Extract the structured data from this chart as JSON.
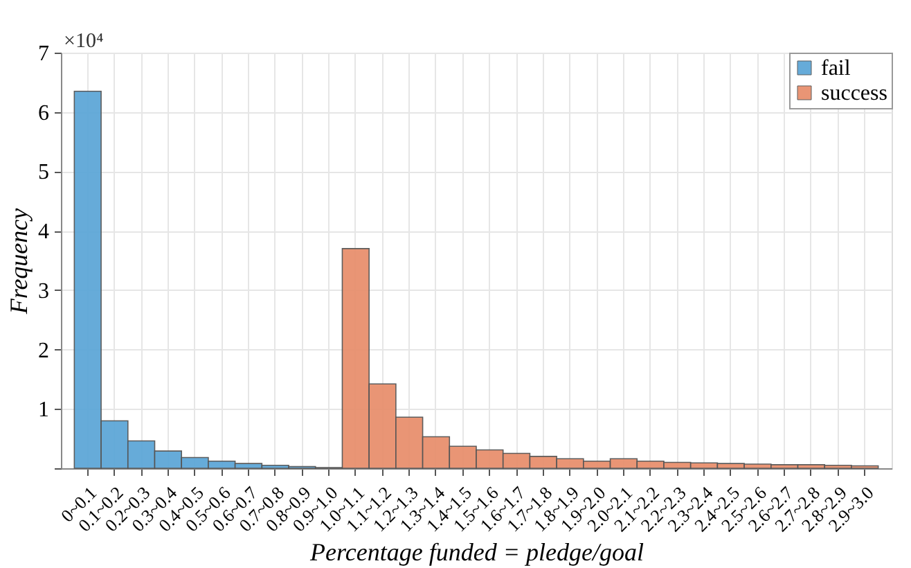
{
  "chart_data": {
    "type": "bar",
    "xlabel": "Percentage funded = pledge/goal",
    "ylabel": "Frequency",
    "annotations": [
      "×10⁴"
    ],
    "categories": [
      "0~0.1",
      "0.1~0.2",
      "0.2~0.3",
      "0.3~0.4",
      "0.4~0.5",
      "0.5~0.6",
      "0.6~0.7",
      "0.7~0.8",
      "0.8~0.9",
      "0.9~1.0",
      "1.0~1.1",
      "1.1~1.2",
      "1.2~1.3",
      "1.3~1.4",
      "1.4~1.5",
      "1.5~1.6",
      "1.6~1.7",
      "1.7~1.8",
      "1.8~1.9",
      "1.9~2.0",
      "2.0~2.1",
      "2.1~2.2",
      "2.2~2.3",
      "2.3~2.4",
      "2.4~2.5",
      "2.5~2.6",
      "2.6~2.7",
      "2.7~2.8",
      "2.8~2.9",
      "2.9~3.0"
    ],
    "series": [
      {
        "name": "fail",
        "color": "#5ea7d8",
        "values": [
          6.35,
          0.8,
          0.46,
          0.29,
          0.18,
          0.12,
          0.08,
          0.05,
          0.03,
          0.01,
          null,
          null,
          null,
          null,
          null,
          null,
          null,
          null,
          null,
          null,
          null,
          null,
          null,
          null,
          null,
          null,
          null,
          null,
          null,
          null
        ]
      },
      {
        "name": "success",
        "color": "#e8906e",
        "values": [
          null,
          null,
          null,
          null,
          null,
          null,
          null,
          null,
          null,
          null,
          3.7,
          1.42,
          0.86,
          0.53,
          0.37,
          0.31,
          0.25,
          0.2,
          0.16,
          0.12,
          0.16,
          0.12,
          0.1,
          0.09,
          0.08,
          0.07,
          0.06,
          0.06,
          0.05,
          0.04
        ]
      }
    ],
    "ylim": [
      0,
      7
    ],
    "yticks": [
      {
        "value": 0,
        "label": null
      },
      1,
      2,
      3,
      4,
      5,
      6,
      7
    ],
    "grid": true,
    "legend": "top right"
  }
}
